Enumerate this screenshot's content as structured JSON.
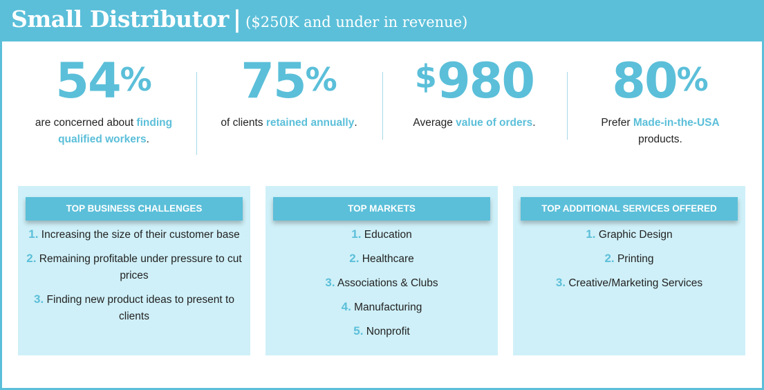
{
  "header": {
    "title": "Small Distributor",
    "separator": "|",
    "subtitle": "($250K and under in revenue)"
  },
  "stats": [
    {
      "value": "54",
      "suffix": "%",
      "text_before": "are concerned about ",
      "highlight": "finding qualified workers",
      "text_after": "."
    },
    {
      "value": "75",
      "suffix": "%",
      "text_before": "of clients ",
      "highlight": "retained annually",
      "text_after": "."
    },
    {
      "prefix": "$",
      "value": "980",
      "text_before": "Average ",
      "highlight": "value of orders",
      "text_after": "."
    },
    {
      "value": "80",
      "suffix": "%",
      "text_before": "Prefer ",
      "highlight": "Made-in-the-USA",
      "text_after": " products."
    }
  ],
  "panels": [
    {
      "heading": "TOP BUSINESS CHALLENGES",
      "items": [
        {
          "num": "1.",
          "text": "Increasing the size of their customer base"
        },
        {
          "num": "2.",
          "text": "Remaining profitable under pressure to cut prices"
        },
        {
          "num": "3.",
          "text": "Finding new product ideas to present to clients"
        }
      ]
    },
    {
      "heading": "TOP MARKETS",
      "items": [
        {
          "num": "1.",
          "text": "Education"
        },
        {
          "num": "2.",
          "text": "Healthcare"
        },
        {
          "num": "3.",
          "text": "Associations & Clubs"
        },
        {
          "num": "4.",
          "text": "Manufacturing"
        },
        {
          "num": "5.",
          "text": "Nonprofit"
        }
      ]
    },
    {
      "heading": "TOP ADDITIONAL SERVICES OFFERED",
      "items": [
        {
          "num": "1.",
          "text": "Graphic Design"
        },
        {
          "num": "2.",
          "text": "Printing"
        },
        {
          "num": "3.",
          "text": "Creative/Marketing Services"
        }
      ]
    }
  ],
  "colors": {
    "accent": "#5bbfd9",
    "panel_bg": "#cff0f8",
    "text": "#222222"
  }
}
